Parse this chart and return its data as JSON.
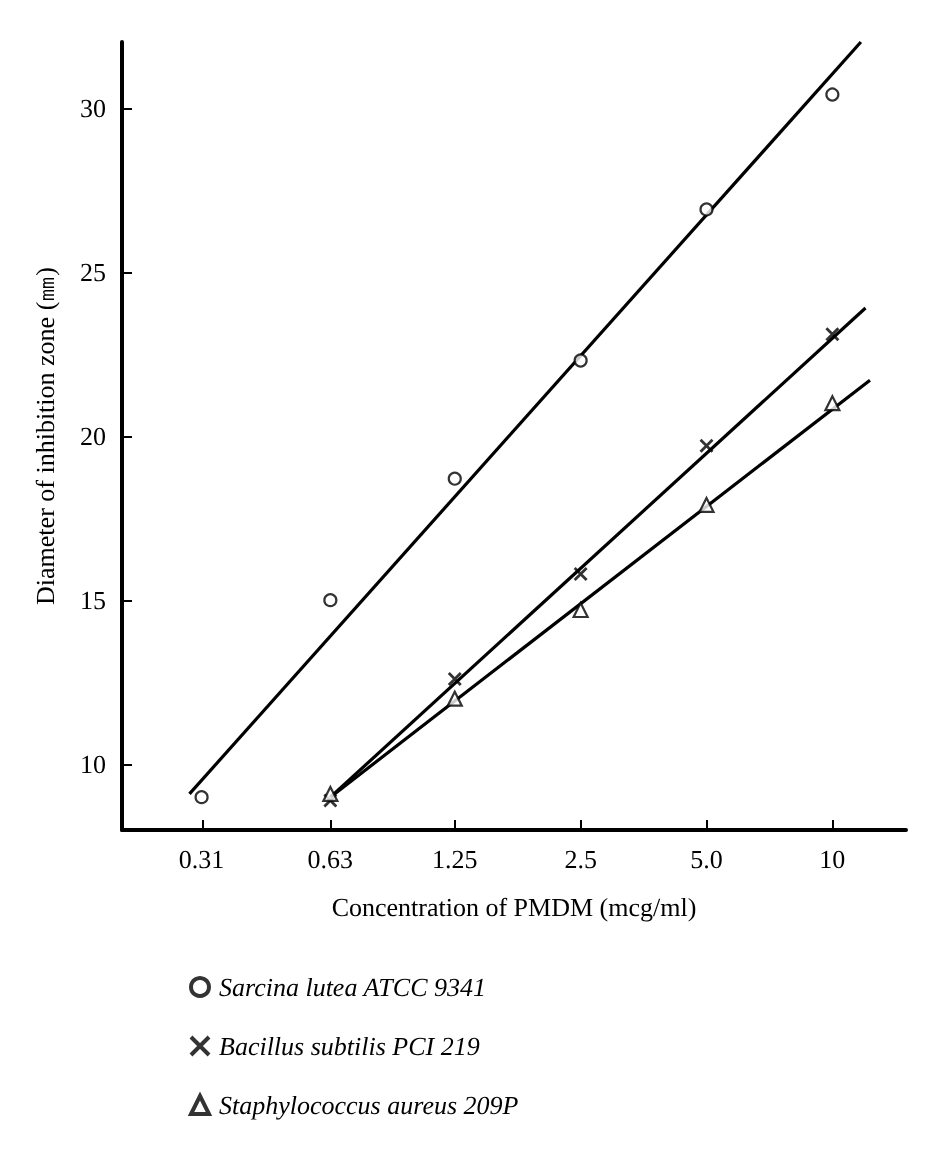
{
  "chart_data": {
    "type": "scatter",
    "xlabel": "Concentration of PMDM (mcg/ml)",
    "ylabel": "Diameter of inhibition zone (㎜)",
    "log": "x",
    "xlim": [
      0.2,
      15
    ],
    "xticks": [
      0.31,
      0.63,
      1.25,
      2.5,
      {
        "value": 5,
        "label": "5.0"
      },
      10
    ],
    "ylim": [
      8,
      32
    ],
    "yticks": [
      10,
      15,
      20,
      25,
      30
    ],
    "grid": false,
    "legend": "bottom",
    "x": [
      0.31,
      0.63,
      1.25,
      2.5,
      5,
      10
    ],
    "series": [
      {
        "name": "Sarcina lutea ATCC 9341",
        "color": "#000000",
        "marker": "circle",
        "values": [
          9.0,
          15.0,
          18.7,
          22.3,
          26.9,
          30.4
        ]
      },
      {
        "name": "Bacillus subtilis PCI 219",
        "color": "#000000",
        "marker": "cross",
        "x": [
          0.63,
          1.25,
          2.5,
          5,
          10
        ],
        "values": [
          8.9,
          12.6,
          15.8,
          19.7,
          23.1
        ]
      },
      {
        "name": "Staphylococcus aureus 209P",
        "color": "#000000",
        "marker": "triangle",
        "x": [
          0.63,
          1.25,
          2.5,
          5,
          10
        ],
        "values": [
          9.1,
          12.0,
          14.7,
          17.9,
          21.0
        ]
      },
      {
        "type": "line",
        "color": "#000000",
        "marker": "none",
        "x": [
          0.29,
          11.7
        ],
        "values": [
          9.1,
          32.0
        ]
      },
      {
        "type": "line",
        "color": "#000000",
        "marker": "none",
        "x": [
          0.63,
          12.0
        ],
        "values": [
          9.0,
          23.9
        ]
      },
      {
        "type": "line",
        "color": "#000000",
        "marker": "none",
        "x": [
          0.63,
          12.3
        ],
        "values": [
          9.0,
          21.7
        ]
      }
    ]
  }
}
